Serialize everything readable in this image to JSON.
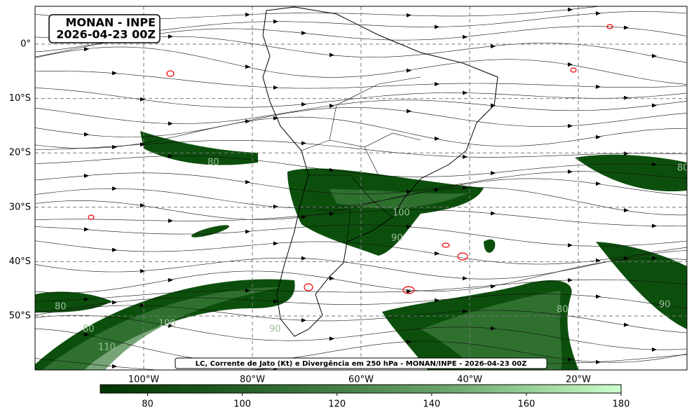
{
  "map_title": {
    "line1": "MONAN - INPE",
    "line2": "2026-04-23 00Z"
  },
  "caption": "LC, Corrente de Jato (Kt) e Divergência em 250 hPa - MONAN/INPE - 2026-04-23 00Z",
  "lat_labels": [
    "0°",
    "10°S",
    "20°S",
    "30°S",
    "40°S",
    "50°S"
  ],
  "lon_labels": [
    "100°W",
    "80°W",
    "60°W",
    "40°W",
    "20°W"
  ],
  "contour_labels": [
    "80",
    "80",
    "100",
    "90",
    "80",
    "80",
    "100",
    "90",
    "110",
    "90",
    "80"
  ],
  "colorbar": {
    "range": [
      70,
      180
    ],
    "ticks": [
      80,
      100,
      120,
      140,
      160,
      180
    ],
    "colors": [
      "#003300",
      "#2e6b2e",
      "#6aa56a",
      "#ccffcc"
    ]
  }
}
